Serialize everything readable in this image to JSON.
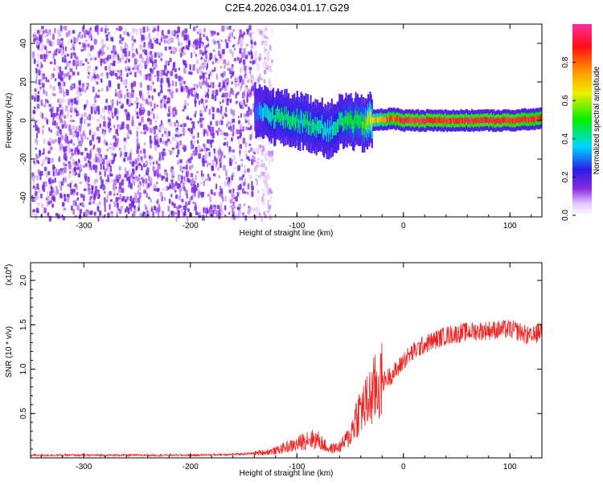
{
  "title": "C2E4.2026.034.01.17.G29",
  "chart_data": [
    {
      "type": "heatmap",
      "title": "C2E4.2026.034.01.17.G29",
      "xlabel": "Height of straight line (km)",
      "ylabel": "Frequency (Hz)",
      "xlim": [
        -350,
        130
      ],
      "ylim": [
        -50,
        50
      ],
      "xticks": [
        -300,
        -200,
        -100,
        0,
        100
      ],
      "xtick_labels": [
        "-300",
        "-200",
        "-100",
        "0",
        "100"
      ],
      "yticks": [
        -40,
        -20,
        0,
        20,
        40
      ],
      "ytick_labels": [
        "-40",
        "-20",
        "0",
        "20",
        "40"
      ],
      "grid": false,
      "colorbar": {
        "label": "Normalized spectral amplitude",
        "range": [
          0,
          1
        ],
        "ticks": [
          0.0,
          0.2,
          0.4,
          0.6,
          0.8
        ],
        "tick_labels": [
          "0.0",
          "0.2",
          "0.4",
          "0.6",
          "0.8"
        ],
        "colormap": "rainbow (white-violet-blue-cyan-green-yellow-orange-red-magenta)"
      },
      "features": {
        "noise_region_x": [
          -350,
          -140
        ],
        "noise_amplitude": 0.15,
        "ridge": [
          {
            "x": -140,
            "freq": 5,
            "amp": 0.3
          },
          {
            "x": -130,
            "freq": 3,
            "amp": 0.4
          },
          {
            "x": -120,
            "freq": 2,
            "amp": 0.45
          },
          {
            "x": -100,
            "freq": 0,
            "amp": 0.45
          },
          {
            "x": -85,
            "freq": -2,
            "amp": 0.45
          },
          {
            "x": -70,
            "freq": -5,
            "amp": 0.4
          },
          {
            "x": -60,
            "freq": -1,
            "amp": 0.45
          },
          {
            "x": -50,
            "freq": 0,
            "amp": 0.5
          },
          {
            "x": -40,
            "freq": -2,
            "amp": 0.5
          },
          {
            "x": -30,
            "freq": 0,
            "amp": 0.7
          },
          {
            "x": -10,
            "freq": 1,
            "amp": 0.9
          },
          {
            "x": 0,
            "freq": 0,
            "amp": 0.95
          },
          {
            "x": 60,
            "freq": 0,
            "amp": 0.95
          },
          {
            "x": 100,
            "freq": 0,
            "amp": 0.95
          },
          {
            "x": 130,
            "freq": 1,
            "amp": 0.9
          }
        ]
      }
    },
    {
      "type": "line",
      "xlabel": "Height of straight line (km)",
      "ylabel": "SNR (10 * v/v)",
      "y_multiplier": "(x10",
      "y_multiplier_exp": "4",
      "y_multiplier_close": ")",
      "xlim": [
        -350,
        130
      ],
      "ylim": [
        0,
        2.2
      ],
      "xticks": [
        -300,
        -200,
        -100,
        0,
        100
      ],
      "xtick_labels": [
        "-300",
        "-200",
        "-100",
        "0",
        "100"
      ],
      "yticks": [
        0.5,
        1.0,
        1.5,
        2.0
      ],
      "ytick_labels": [
        "0.5",
        "1.0",
        "1.5",
        "2.0"
      ],
      "grid": false,
      "series": [
        {
          "color": "#ee2222",
          "x": [
            -350,
            -300,
            -250,
            -200,
            -160,
            -140,
            -120,
            -110,
            -100,
            -90,
            -80,
            -70,
            -60,
            -50,
            -45,
            -40,
            -35,
            -30,
            -25,
            -20,
            -15,
            -10,
            -5,
            0,
            10,
            20,
            30,
            40,
            60,
            80,
            100,
            110,
            120,
            125,
            130
          ],
          "y": [
            0.03,
            0.03,
            0.03,
            0.03,
            0.04,
            0.05,
            0.08,
            0.12,
            0.15,
            0.22,
            0.2,
            0.1,
            0.12,
            0.25,
            0.45,
            0.55,
            0.6,
            0.7,
            0.8,
            0.85,
            0.9,
            0.95,
            1.0,
            1.1,
            1.2,
            1.28,
            1.33,
            1.38,
            1.42,
            1.44,
            1.45,
            1.42,
            1.35,
            1.4,
            1.45
          ]
        }
      ]
    }
  ]
}
